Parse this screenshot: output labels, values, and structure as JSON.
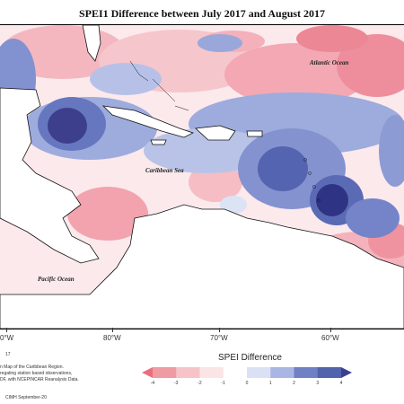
{
  "title": "SPEI1 Difference between July 2017 and August 2017",
  "ocean_labels": {
    "atlantic": "Atlantic Ocean",
    "caribbean": "Caribbean Sea",
    "pacific": "Pacific Ocean"
  },
  "longitudes": [
    "0°W",
    "80°W",
    "70°W",
    "60°W"
  ],
  "notes": {
    "n1": "17",
    "n2": "n Map of the Caribbean Region.",
    "n3": "regating station based observations,",
    "n4": "DF, with NCEPINCAR Reanalysis Data.",
    "credit": "CIMH September-20"
  },
  "legend": {
    "title": "SPEI Difference",
    "labels": [
      "-4",
      "-3",
      "-2",
      "-1",
      "0",
      "1",
      "2",
      "3",
      "4"
    ],
    "colors": [
      "#ea6f7e",
      "#f09aa3",
      "#f6c4c8",
      "#fbe4e6",
      "#ffffff",
      "#dbe1f4",
      "#a9b6e3",
      "#6f80c4",
      "#3c3f8e"
    ]
  }
}
